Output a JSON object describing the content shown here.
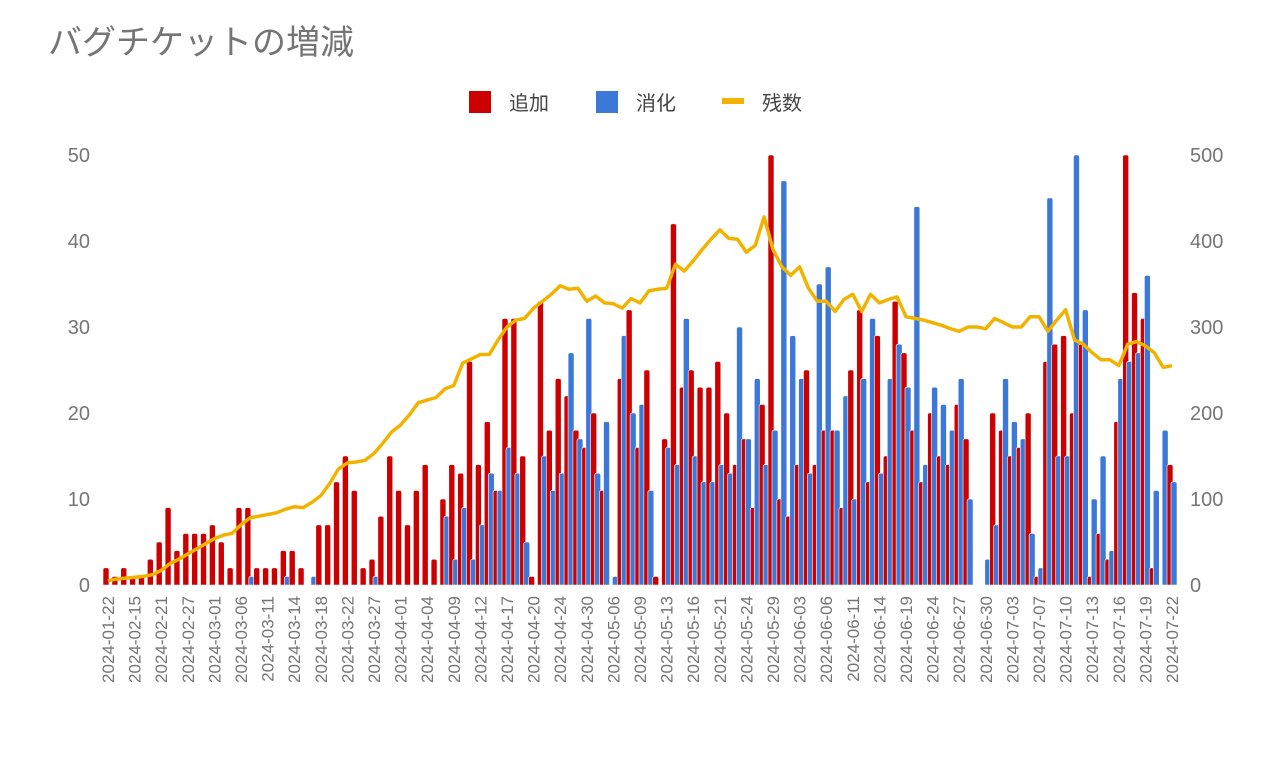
{
  "chart_data": {
    "type": "bar",
    "title": "バグチケットの増減",
    "legend": {
      "position": "top",
      "items": [
        {
          "name": "追加",
          "color": "#cc0000"
        },
        {
          "name": "消化",
          "color": "#3c78d8"
        },
        {
          "name": "残数",
          "color": "#f1b300"
        }
      ]
    },
    "left_axis": {
      "ylim": [
        0,
        50
      ],
      "ticks": [
        "0",
        "10",
        "20",
        "30",
        "40",
        "50"
      ]
    },
    "right_axis": {
      "ylim": [
        0,
        500
      ],
      "ticks": [
        "0",
        "100",
        "200",
        "300",
        "400",
        "500"
      ]
    },
    "x_tick_labels": [
      "2024-01-22",
      "2024-02-15",
      "2024-02-21",
      "2024-02-27",
      "2024-03-01",
      "2024-03-06",
      "2024-03-11",
      "2024-03-14",
      "2024-03-18",
      "2024-03-22",
      "2024-03-27",
      "2024-04-01",
      "2024-04-04",
      "2024-04-09",
      "2024-04-12",
      "2024-04-17",
      "2024-04-20",
      "2024-04-24",
      "2024-04-30",
      "2024-05-06",
      "2024-05-09",
      "2024-05-13",
      "2024-05-16",
      "2024-05-21",
      "2024-05-24",
      "2024-05-29",
      "2024-06-03",
      "2024-06-06",
      "2024-06-11",
      "2024-06-14",
      "2024-06-19",
      "2024-06-24",
      "2024-06-27",
      "2024-06-30",
      "2024-07-03",
      "2024-07-07",
      "2024-07-10",
      "2024-07-13",
      "2024-07-16",
      "2024-07-19",
      "2024-07-22"
    ],
    "series": [
      {
        "name": "追加",
        "type": "bar",
        "axis": "left",
        "values": [
          2,
          1,
          2,
          1,
          1,
          3,
          5,
          9,
          4,
          6,
          6,
          6,
          7,
          5,
          2,
          9,
          9,
          2,
          2,
          2,
          4,
          4,
          2,
          0,
          7,
          7,
          12,
          15,
          11,
          2,
          3,
          8,
          15,
          11,
          7,
          11,
          14,
          3,
          10,
          14,
          13,
          26,
          14,
          19,
          11,
          31,
          31,
          15,
          1,
          33,
          18,
          24,
          22,
          18,
          16,
          20,
          11,
          0,
          24,
          32,
          16,
          25,
          1,
          17,
          42,
          23,
          25,
          23,
          23,
          26,
          20,
          14,
          17,
          9,
          21,
          50,
          10,
          8,
          14,
          25,
          14,
          18,
          18,
          9,
          25,
          32,
          12,
          29,
          15,
          33,
          27,
          18,
          12,
          20,
          15,
          14,
          21,
          17,
          0,
          0,
          20,
          18,
          15,
          16,
          20,
          1,
          26,
          28,
          29,
          20,
          28,
          1,
          6,
          3,
          19,
          50,
          34,
          31,
          2,
          0,
          14
        ]
      },
      {
        "name": "消化",
        "type": "bar",
        "axis": "left",
        "values": [
          0,
          0,
          0,
          0,
          0,
          0,
          0,
          0,
          0,
          0,
          0,
          0,
          0,
          0,
          0,
          0,
          1,
          0,
          0,
          0,
          1,
          0,
          0,
          1,
          0,
          0,
          0,
          0,
          0,
          0,
          1,
          0,
          0,
          0,
          0,
          0,
          0,
          0,
          8,
          3,
          9,
          3,
          7,
          13,
          11,
          16,
          13,
          5,
          0,
          15,
          11,
          13,
          27,
          17,
          31,
          13,
          19,
          1,
          29,
          20,
          21,
          11,
          0,
          16,
          14,
          31,
          15,
          12,
          12,
          14,
          13,
          30,
          17,
          24,
          14,
          18,
          47,
          29,
          24,
          13,
          35,
          37,
          18,
          22,
          10,
          24,
          31,
          13,
          24,
          28,
          23,
          44,
          14,
          23,
          21,
          18,
          24,
          10,
          0,
          3,
          7,
          24,
          19,
          17,
          6,
          2,
          45,
          15,
          15,
          50,
          32,
          10,
          15,
          4,
          24,
          26,
          27,
          36,
          11,
          18,
          12
        ]
      },
      {
        "name": "残数",
        "type": "line",
        "axis": "right",
        "values": [
          5,
          7,
          8,
          9,
          10,
          12,
          17,
          25,
          30,
          36,
          42,
          48,
          54,
          58,
          60,
          70,
          78,
          80,
          82,
          84,
          88,
          91,
          90,
          96,
          104,
          118,
          135,
          142,
          143,
          145,
          153,
          165,
          178,
          186,
          198,
          212,
          215,
          218,
          228,
          232,
          258,
          263,
          268,
          268,
          285,
          300,
          308,
          310,
          322,
          330,
          338,
          348,
          344,
          345,
          330,
          336,
          328,
          327,
          322,
          333,
          328,
          342,
          344,
          345,
          373,
          365,
          377,
          390,
          402,
          413,
          403,
          402,
          387,
          395,
          428,
          390,
          370,
          360,
          370,
          345,
          330,
          330,
          318,
          332,
          338,
          318,
          338,
          328,
          332,
          335,
          312,
          310,
          308,
          305,
          302,
          298,
          295,
          300,
          300,
          298,
          310,
          305,
          300,
          300,
          312,
          312,
          295,
          308,
          320,
          285,
          280,
          270,
          262,
          262,
          255,
          280,
          283,
          278,
          270,
          253,
          255
        ]
      }
    ]
  }
}
